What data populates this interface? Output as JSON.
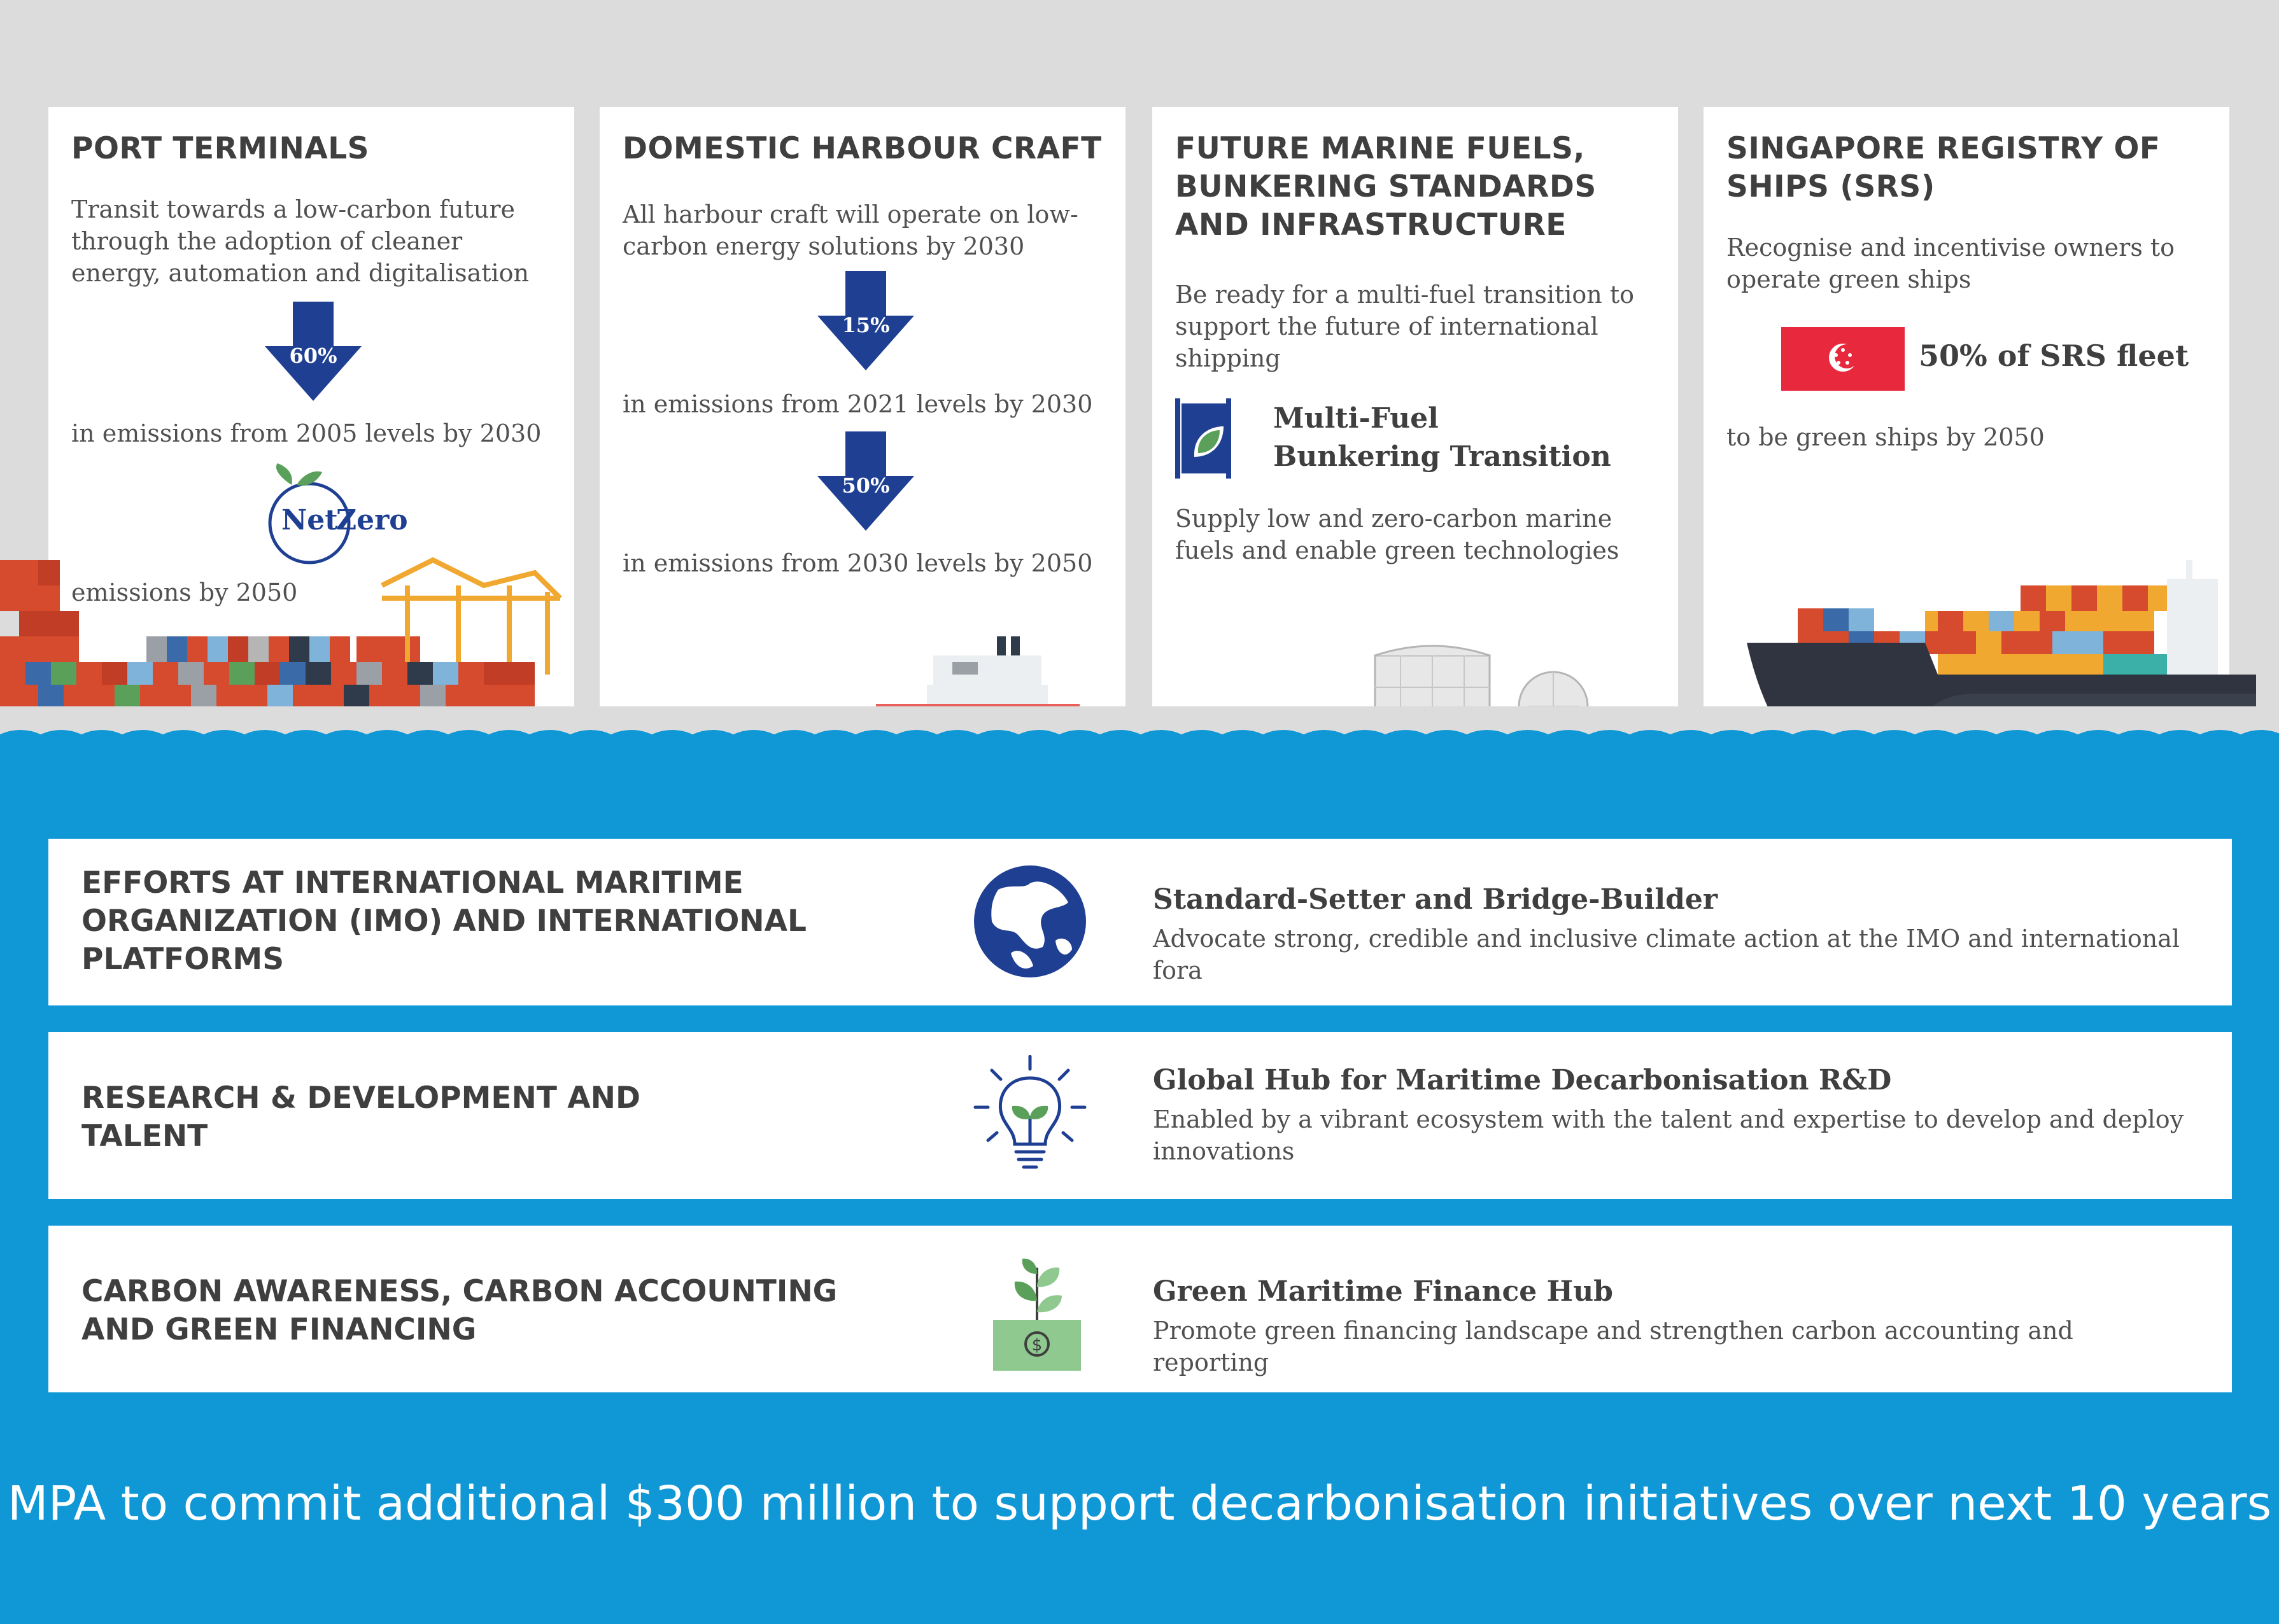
{
  "port_terminals": {
    "title": "PORT TERMINALS",
    "description": "Transit towards a low-carbon future through the adoption of cleaner energy, automation and digitalisation",
    "arrow_value": "60%",
    "after_arrow": "in emissions from 2005 levels by 2030",
    "logo_net": "Net",
    "logo_zero": "Zero",
    "after_logo": "emissions by 2050"
  },
  "harbour_craft": {
    "title": "DOMESTIC HARBOUR CRAFT",
    "description": "All harbour craft will operate on low-carbon energy solutions by 2030",
    "arrow1_value": "15%",
    "after_arrow1": "in emissions from 2021 levels by 2030",
    "arrow2_value": "50%",
    "after_arrow2": "in emissions from 2030 levels by 2050"
  },
  "marine_fuels": {
    "title": "FUTURE MARINE FUELS, BUNKERING STANDARDS AND INFRASTRUCTURE",
    "description": "Be ready for a multi-fuel transition to support the future of international shipping",
    "badge_line1": "Multi-Fuel",
    "badge_line2": "Bunkering Transition",
    "footer_text": "Supply low and zero-carbon marine fuels and enable green technologies"
  },
  "srs": {
    "title": "SINGAPORE REGISTRY OF SHIPS (SRS)",
    "description": "Recognise and incentivise owners to operate green ships",
    "fleet_text": "50% of SRS fleet",
    "after_flag": "to be green ships by 2050"
  },
  "rows": [
    {
      "heading": "EFFORTS AT INTERNATIONAL MARITIME ORGANIZATION (IMO) AND INTERNATIONAL PLATFORMS",
      "title": "Standard-Setter and Bridge-Builder",
      "description": "Advocate strong, credible and inclusive climate action at the IMO and international fora",
      "icon": "globe-icon"
    },
    {
      "heading": "RESEARCH & DEVELOPMENT AND TALENT",
      "title": "Global Hub for Maritime Decarbonisation R&D",
      "description": "Enabled by a vibrant ecosystem with the talent and expertise to develop and deploy innovations",
      "icon": "lightbulb-plant-icon"
    },
    {
      "heading": "CARBON AWARENESS, CARBON ACCOUNTING AND GREEN FINANCING",
      "title": "Green Maritime Finance Hub",
      "description": "Promote green financing landscape and strengthen carbon accounting and reporting",
      "icon": "money-plant-icon"
    }
  ],
  "footer": "MPA to commit additional $300 million to support decarbonisation initiatives over next 10 years",
  "colors": {
    "sea": "#0f97d6",
    "arrow_blue": "#1f3f93",
    "flag_red": "#e8283c",
    "leaf_green": "#5aa05a",
    "background_grey": "#dcdcdc"
  }
}
